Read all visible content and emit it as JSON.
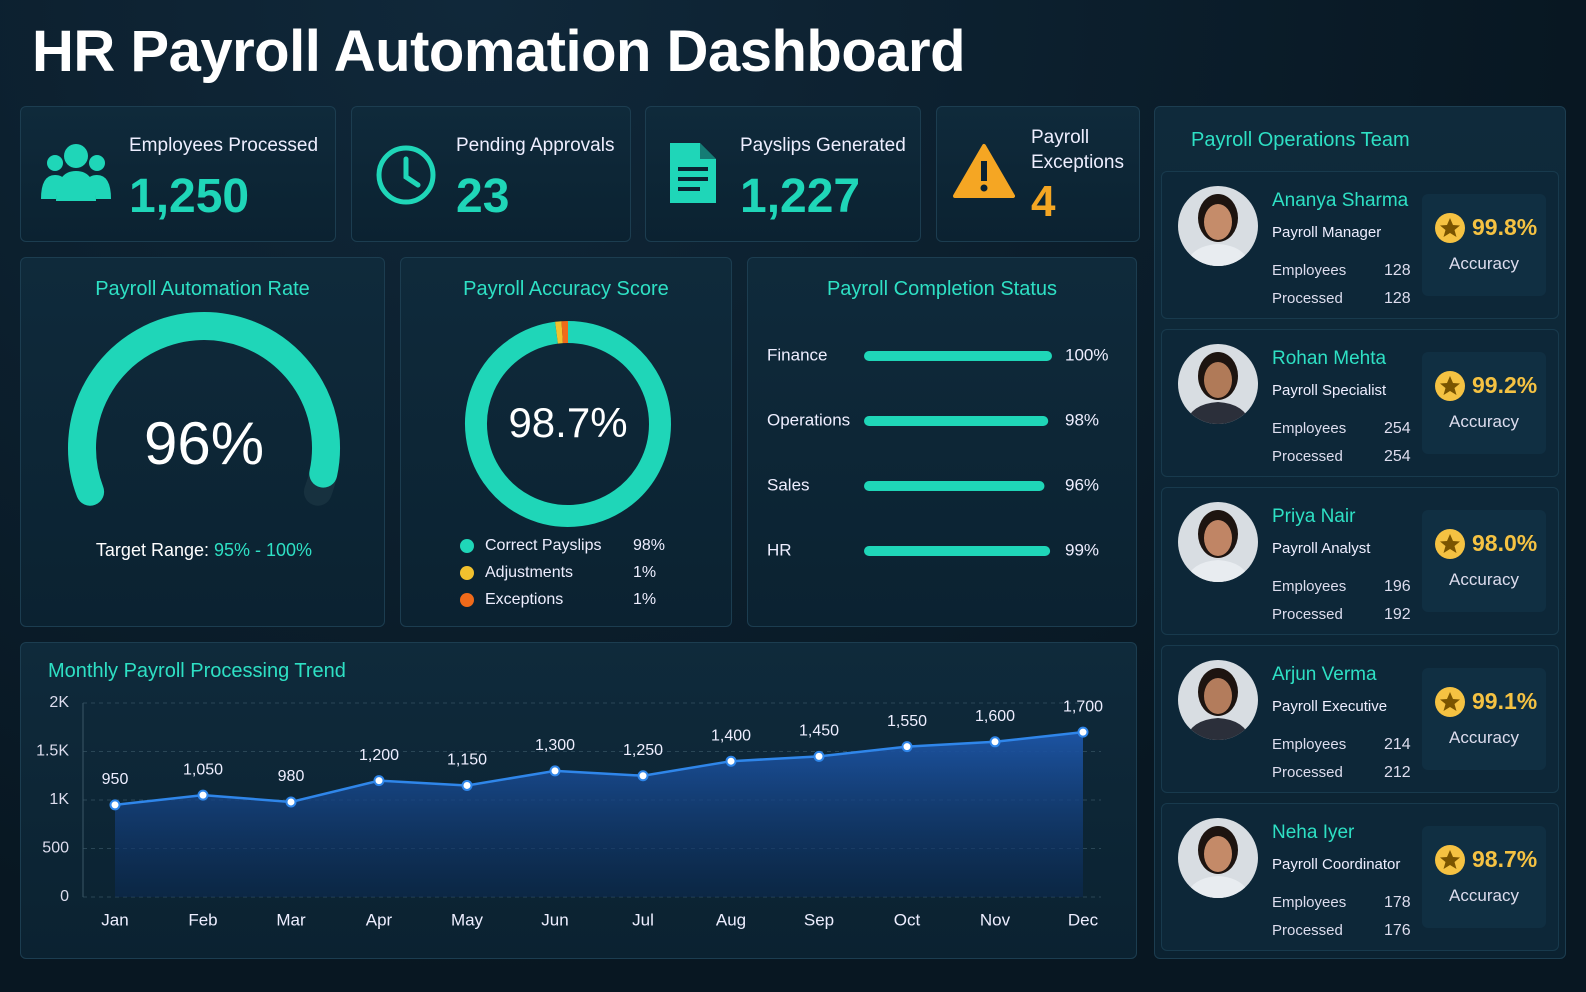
{
  "title": "HR Payroll Automation Dashboard",
  "kpis": [
    {
      "label": "Employees Processed",
      "value": "1,250"
    },
    {
      "label": "Pending Approvals",
      "value": "23"
    },
    {
      "label": "Payslips Generated",
      "value": "1,227"
    },
    {
      "label": "Payroll Exceptions",
      "value": "4"
    }
  ],
  "chart_data": [
    {
      "type": "gauge",
      "title": "Payroll Automation Rate",
      "values": [
        96
      ],
      "value_labels": [
        "96%"
      ],
      "ylim": [
        0,
        100
      ],
      "color": "#1fd6b8",
      "annotation": "Target Range:",
      "target_range": "95% - 100%"
    },
    {
      "type": "pie",
      "donut": true,
      "title": "Payroll Accuracy Score",
      "center_label": "98.7%",
      "categories": [
        "Correct Payslips",
        "Adjustments",
        "Exceptions"
      ],
      "values": [
        98,
        1,
        1
      ],
      "value_labels": [
        "98%",
        "1%",
        "1%"
      ],
      "colors": [
        "#1fd6b8",
        "#f2c12e",
        "#f06a1a"
      ]
    },
    {
      "type": "bar",
      "orientation": "horizontal",
      "title": "Payroll Completion Status",
      "categories": [
        "Finance",
        "Operations",
        "Sales",
        "HR"
      ],
      "values": [
        100,
        98,
        96,
        99
      ],
      "value_labels": [
        "100%",
        "98%",
        "96%",
        "99%"
      ],
      "xlim": [
        0,
        100
      ],
      "color": "#1fd6b8"
    },
    {
      "type": "line",
      "title": "Monthly Payroll Processing Trend",
      "categories": [
        "Jan",
        "Feb",
        "Mar",
        "Apr",
        "May",
        "Jun",
        "Jul",
        "Aug",
        "Sep",
        "Oct",
        "Nov",
        "Dec"
      ],
      "values": [
        950,
        1050,
        980,
        1200,
        1150,
        1300,
        1250,
        1400,
        1450,
        1550,
        1600,
        1700
      ],
      "value_labels": [
        "950",
        "1,050",
        "980",
        "1,200",
        "1,150",
        "1,300",
        "1,250",
        "1,400",
        "1,450",
        "1,550",
        "1,600",
        "1,700"
      ],
      "ylim": [
        0,
        2000
      ],
      "yticks": [
        0,
        500,
        {
          "value": 1000,
          "label": "1K"
        },
        {
          "value": 1500,
          "label": "1.5K"
        },
        {
          "value": 2000,
          "label": "2K"
        }
      ],
      "color": "#2f86ea",
      "area": true,
      "grid": true
    }
  ],
  "team": {
    "title": "Payroll Operations Team",
    "members": [
      {
        "name": "Ananya Sharma",
        "role": "Payroll Manager",
        "employees_label": "Employees",
        "employees": 128,
        "processed_label": "Processed",
        "processed": 128,
        "accuracy": "99.8%",
        "accuracy_label": "Accuracy"
      },
      {
        "name": "Rohan Mehta",
        "role": "Payroll Specialist",
        "employees_label": "Employees",
        "employees": 254,
        "processed_label": "Processed",
        "processed": 254,
        "accuracy": "99.2%",
        "accuracy_label": "Accuracy"
      },
      {
        "name": "Priya Nair",
        "role": "Payroll Analyst",
        "employees_label": "Employees",
        "employees": 196,
        "processed_label": "Processed",
        "processed": 192,
        "accuracy": "98.0%",
        "accuracy_label": "Accuracy"
      },
      {
        "name": "Arjun Verma",
        "role": "Payroll Executive",
        "employees_label": "Employees",
        "employees": 214,
        "processed_label": "Processed",
        "processed": 212,
        "accuracy": "99.1%",
        "accuracy_label": "Accuracy"
      },
      {
        "name": "Neha Iyer",
        "role": "Payroll Coordinator",
        "employees_label": "Employees",
        "employees": 178,
        "processed_label": "Processed",
        "processed": 176,
        "accuracy": "98.7%",
        "accuracy_label": "Accuracy"
      }
    ]
  }
}
